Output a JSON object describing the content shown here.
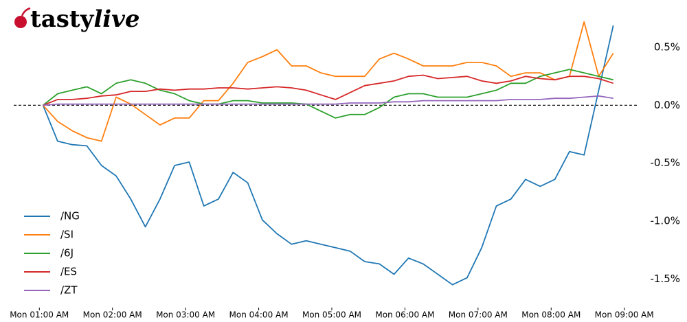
{
  "logo": [
    "tasty",
    "live"
  ],
  "chart_data": {
    "type": "line",
    "x": [
      1.05,
      1.25,
      1.45,
      1.65,
      1.85,
      2.05,
      2.25,
      2.45,
      2.65,
      2.85,
      3.05,
      3.25,
      3.45,
      3.65,
      3.85,
      4.05,
      4.25,
      4.45,
      4.65,
      4.85,
      5.05,
      5.25,
      5.45,
      5.65,
      5.85,
      6.05,
      6.25,
      6.45,
      6.65,
      6.85,
      7.05,
      7.25,
      7.45,
      7.65,
      7.85,
      8.05,
      8.25,
      8.45,
      8.65,
      8.85
    ],
    "series": [
      {
        "name": "/NG",
        "color": "#1f77b4",
        "values": [
          0,
          -0.31,
          -0.34,
          -0.35,
          -0.52,
          -0.61,
          -0.81,
          -1.05,
          -0.81,
          -0.52,
          -0.49,
          -0.87,
          -0.81,
          -0.58,
          -0.67,
          -0.99,
          -1.11,
          -1.2,
          -1.17,
          -1.2,
          -1.23,
          -1.26,
          -1.35,
          -1.37,
          -1.46,
          -1.32,
          -1.37,
          -1.46,
          -1.55,
          -1.49,
          -1.23,
          -0.87,
          -0.81,
          -0.64,
          -0.7,
          -0.64,
          -0.4,
          -0.43,
          0.13,
          0.69
        ]
      },
      {
        "name": "/SI",
        "color": "#ff7f0e",
        "values": [
          0,
          -0.14,
          -0.22,
          -0.28,
          -0.31,
          0.07,
          0.01,
          -0.08,
          -0.17,
          -0.11,
          -0.11,
          0.04,
          0.04,
          0.19,
          0.37,
          0.42,
          0.48,
          0.34,
          0.34,
          0.28,
          0.25,
          0.25,
          0.25,
          0.4,
          0.45,
          0.4,
          0.34,
          0.34,
          0.34,
          0.37,
          0.37,
          0.34,
          0.25,
          0.28,
          0.28,
          0.22,
          0.25,
          0.72,
          0.25,
          0.45
        ]
      },
      {
        "name": "/6J",
        "color": "#2ca02c",
        "values": [
          0,
          0.1,
          0.13,
          0.16,
          0.1,
          0.19,
          0.22,
          0.19,
          0.13,
          0.1,
          0.04,
          0.01,
          0.01,
          0.04,
          0.04,
          0.02,
          0.02,
          0.02,
          0.01,
          -0.05,
          -0.11,
          -0.08,
          -0.08,
          -0.02,
          0.07,
          0.1,
          0.1,
          0.07,
          0.07,
          0.07,
          0.1,
          0.13,
          0.19,
          0.19,
          0.25,
          0.28,
          0.31,
          0.28,
          0.25,
          0.22
        ]
      },
      {
        "name": "/ES",
        "color": "#d62728",
        "values": [
          0,
          0.05,
          0.05,
          0.06,
          0.08,
          0.09,
          0.12,
          0.12,
          0.14,
          0.13,
          0.14,
          0.14,
          0.15,
          0.15,
          0.14,
          0.15,
          0.16,
          0.15,
          0.13,
          0.09,
          0.05,
          0.11,
          0.17,
          0.19,
          0.21,
          0.25,
          0.26,
          0.23,
          0.24,
          0.25,
          0.21,
          0.19,
          0.21,
          0.25,
          0.23,
          0.22,
          0.25,
          0.25,
          0.23,
          0.19
        ]
      },
      {
        "name": "/ZT",
        "color": "#9467bd",
        "values": [
          0,
          0.01,
          0.01,
          0.01,
          0.01,
          0.01,
          0.01,
          0.01,
          0.01,
          0.01,
          0.01,
          0.01,
          0.01,
          0.01,
          0.01,
          0.01,
          0.01,
          0.01,
          0.01,
          0.01,
          0.01,
          0.02,
          0.02,
          0.02,
          0.03,
          0.03,
          0.04,
          0.04,
          0.04,
          0.04,
          0.04,
          0.04,
          0.05,
          0.05,
          0.05,
          0.06,
          0.06,
          0.07,
          0.08,
          0.06
        ]
      }
    ],
    "xlim": [
      0.65,
      9.2
    ],
    "xticks": [
      {
        "value": 1,
        "label": "Mon 01:00 AM"
      },
      {
        "value": 2,
        "label": "Mon 02:00 AM"
      },
      {
        "value": 3,
        "label": "Mon 03:00 AM"
      },
      {
        "value": 4,
        "label": "Mon 04:00 AM"
      },
      {
        "value": 5,
        "label": "Mon 05:00 AM"
      },
      {
        "value": 6,
        "label": "Mon 06:00 AM"
      },
      {
        "value": 7,
        "label": "Mon 07:00 AM"
      },
      {
        "value": 8,
        "label": "Mon 08:00 AM"
      },
      {
        "value": 9,
        "label": "Mon 09:00 AM"
      }
    ],
    "ylim": [
      -1.7,
      0.85
    ],
    "yticks": [
      {
        "value": 0.5,
        "label": "0.5%"
      },
      {
        "value": 0,
        "label": "0.0%"
      },
      {
        "value": -0.5,
        "label": "-0.5%"
      },
      {
        "value": -1,
        "label": "-1.0%"
      },
      {
        "value": -1.5,
        "label": "-1.5%"
      }
    ],
    "hline": 0,
    "legend": "lower left"
  }
}
